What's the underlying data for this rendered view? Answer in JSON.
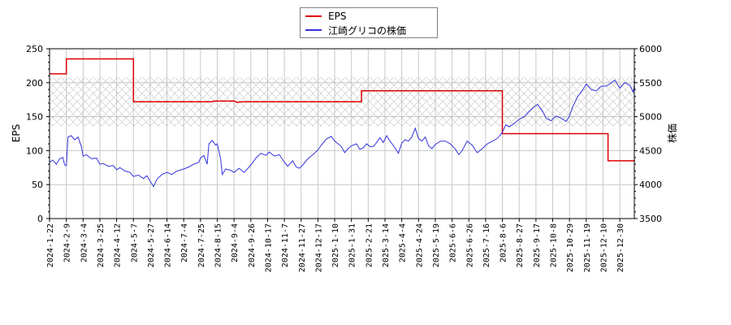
{
  "legend": {
    "items": [
      {
        "label": "EPS",
        "color": "#dd0000"
      },
      {
        "label": "江崎グリコの株価",
        "color": "#3333dd"
      }
    ]
  },
  "axes": {
    "left_title": "EPS",
    "right_title": "株価",
    "left_ticks": [
      "0",
      "50",
      "100",
      "150",
      "200",
      "250"
    ],
    "right_ticks": [
      "3500",
      "4000",
      "4500",
      "5000",
      "5500",
      "6000"
    ]
  },
  "chart_data": {
    "type": "line",
    "title": "",
    "xlabel": "",
    "ylabel": "EPS",
    "ylabel_right": "株価",
    "ylim": [
      0,
      250
    ],
    "ylim_right": [
      3500,
      6000
    ],
    "grid": true,
    "legend_position": "top-center",
    "shaded_band": {
      "axis": "left",
      "from": 136,
      "to": 208,
      "style": "crosshatch"
    },
    "categories": [
      "2024-1-22",
      "2024-2-9",
      "2024-3-4",
      "2024-3-25",
      "2024-4-12",
      "2024-5-7",
      "2024-5-27",
      "2024-6-14",
      "2024-7-4",
      "2024-7-25",
      "2024-8-15",
      "2024-9-4",
      "2024-9-26",
      "2024-10-17",
      "2024-11-7",
      "2024-11-27",
      "2024-12-17",
      "2025-1-10",
      "2025-1-31",
      "2025-2-21",
      "2025-3-14",
      "2025-4-4",
      "2025-4-24",
      "2025-5-19",
      "2025-6-6",
      "2025-6-26",
      "2025-7-16",
      "2025-8-6",
      "2025-8-27",
      "2025-9-17",
      "2025-10-8",
      "2025-10-29",
      "2025-11-19",
      "2025-12-10",
      "2025-12-30"
    ],
    "series": [
      {
        "name": "EPS",
        "axis": "left",
        "color": "#dd0000",
        "step": true,
        "points": [
          [
            0,
            213
          ],
          [
            1,
            213
          ],
          [
            1,
            235
          ],
          [
            5,
            235
          ],
          [
            5,
            172
          ],
          [
            9.7,
            172
          ],
          [
            9.8,
            173
          ],
          [
            11,
            173
          ],
          [
            11.2,
            171
          ],
          [
            11.5,
            172
          ],
          [
            18.6,
            172
          ],
          [
            18.6,
            188
          ],
          [
            27,
            188
          ],
          [
            27,
            125
          ],
          [
            33.3,
            125
          ],
          [
            33.3,
            85
          ],
          [
            34.9,
            85
          ]
        ]
      },
      {
        "name": "江崎グリコの株価",
        "axis": "right",
        "color": "#3333dd",
        "step": false,
        "points": [
          [
            0,
            4330
          ],
          [
            0.2,
            4360
          ],
          [
            0.4,
            4300
          ],
          [
            0.6,
            4380
          ],
          [
            0.8,
            4400
          ],
          [
            0.9,
            4290
          ],
          [
            1.0,
            4280
          ],
          [
            1.1,
            4700
          ],
          [
            1.3,
            4720
          ],
          [
            1.5,
            4660
          ],
          [
            1.7,
            4700
          ],
          [
            1.9,
            4560
          ],
          [
            2.0,
            4420
          ],
          [
            2.2,
            4440
          ],
          [
            2.5,
            4380
          ],
          [
            2.8,
            4390
          ],
          [
            3.0,
            4300
          ],
          [
            3.2,
            4310
          ],
          [
            3.5,
            4270
          ],
          [
            3.8,
            4280
          ],
          [
            4.0,
            4220
          ],
          [
            4.2,
            4250
          ],
          [
            4.5,
            4200
          ],
          [
            4.8,
            4180
          ],
          [
            5.0,
            4120
          ],
          [
            5.3,
            4140
          ],
          [
            5.6,
            4090
          ],
          [
            5.8,
            4130
          ],
          [
            6.0,
            4050
          ],
          [
            6.2,
            3970
          ],
          [
            6.4,
            4080
          ],
          [
            6.7,
            4150
          ],
          [
            7.0,
            4180
          ],
          [
            7.3,
            4150
          ],
          [
            7.6,
            4200
          ],
          [
            8.0,
            4230
          ],
          [
            8.3,
            4260
          ],
          [
            8.6,
            4300
          ],
          [
            8.9,
            4330
          ],
          [
            9.0,
            4390
          ],
          [
            9.2,
            4430
          ],
          [
            9.4,
            4300
          ],
          [
            9.5,
            4600
          ],
          [
            9.7,
            4650
          ],
          [
            9.9,
            4580
          ],
          [
            10.0,
            4600
          ],
          [
            10.2,
            4380
          ],
          [
            10.3,
            4150
          ],
          [
            10.5,
            4230
          ],
          [
            10.8,
            4210
          ],
          [
            11.0,
            4180
          ],
          [
            11.3,
            4240
          ],
          [
            11.6,
            4180
          ],
          [
            11.9,
            4260
          ],
          [
            12.1,
            4320
          ],
          [
            12.3,
            4390
          ],
          [
            12.6,
            4460
          ],
          [
            12.9,
            4430
          ],
          [
            13.1,
            4480
          ],
          [
            13.4,
            4420
          ],
          [
            13.7,
            4440
          ],
          [
            14.0,
            4330
          ],
          [
            14.2,
            4270
          ],
          [
            14.5,
            4350
          ],
          [
            14.7,
            4260
          ],
          [
            14.9,
            4240
          ],
          [
            15.1,
            4290
          ],
          [
            15.4,
            4380
          ],
          [
            15.7,
            4440
          ],
          [
            16.0,
            4510
          ],
          [
            16.2,
            4580
          ],
          [
            16.5,
            4670
          ],
          [
            16.8,
            4710
          ],
          [
            17.0,
            4640
          ],
          [
            17.2,
            4600
          ],
          [
            17.4,
            4560
          ],
          [
            17.6,
            4470
          ],
          [
            17.8,
            4530
          ],
          [
            18.0,
            4570
          ],
          [
            18.3,
            4600
          ],
          [
            18.5,
            4520
          ],
          [
            18.7,
            4540
          ],
          [
            18.9,
            4600
          ],
          [
            19.1,
            4560
          ],
          [
            19.3,
            4560
          ],
          [
            19.5,
            4620
          ],
          [
            19.7,
            4690
          ],
          [
            19.9,
            4620
          ],
          [
            20.1,
            4720
          ],
          [
            20.3,
            4640
          ],
          [
            20.6,
            4540
          ],
          [
            20.8,
            4460
          ],
          [
            21.0,
            4610
          ],
          [
            21.2,
            4660
          ],
          [
            21.4,
            4640
          ],
          [
            21.6,
            4700
          ],
          [
            21.8,
            4830
          ],
          [
            22.0,
            4680
          ],
          [
            22.2,
            4640
          ],
          [
            22.4,
            4700
          ],
          [
            22.6,
            4570
          ],
          [
            22.8,
            4530
          ],
          [
            23.0,
            4590
          ],
          [
            23.3,
            4640
          ],
          [
            23.6,
            4640
          ],
          [
            23.9,
            4600
          ],
          [
            24.2,
            4520
          ],
          [
            24.4,
            4440
          ],
          [
            24.6,
            4500
          ],
          [
            24.9,
            4640
          ],
          [
            25.2,
            4580
          ],
          [
            25.5,
            4470
          ],
          [
            25.8,
            4530
          ],
          [
            26.1,
            4600
          ],
          [
            26.4,
            4640
          ],
          [
            26.7,
            4680
          ],
          [
            27.0,
            4770
          ],
          [
            27.2,
            4880
          ],
          [
            27.4,
            4850
          ],
          [
            27.7,
            4900
          ],
          [
            28.0,
            4960
          ],
          [
            28.3,
            5000
          ],
          [
            28.6,
            5080
          ],
          [
            28.9,
            5150
          ],
          [
            29.1,
            5180
          ],
          [
            29.4,
            5080
          ],
          [
            29.6,
            4980
          ],
          [
            29.9,
            4940
          ],
          [
            30.2,
            5010
          ],
          [
            30.5,
            4980
          ],
          [
            30.8,
            4930
          ],
          [
            31.0,
            5010
          ],
          [
            31.2,
            5150
          ],
          [
            31.5,
            5300
          ],
          [
            31.8,
            5400
          ],
          [
            32.0,
            5480
          ],
          [
            32.3,
            5400
          ],
          [
            32.6,
            5380
          ],
          [
            32.9,
            5450
          ],
          [
            33.2,
            5450
          ],
          [
            33.5,
            5500
          ],
          [
            33.7,
            5540
          ],
          [
            34.0,
            5420
          ],
          [
            34.3,
            5500
          ],
          [
            34.6,
            5460
          ],
          [
            34.8,
            5360
          ],
          [
            34.9,
            5520
          ]
        ]
      }
    ]
  }
}
